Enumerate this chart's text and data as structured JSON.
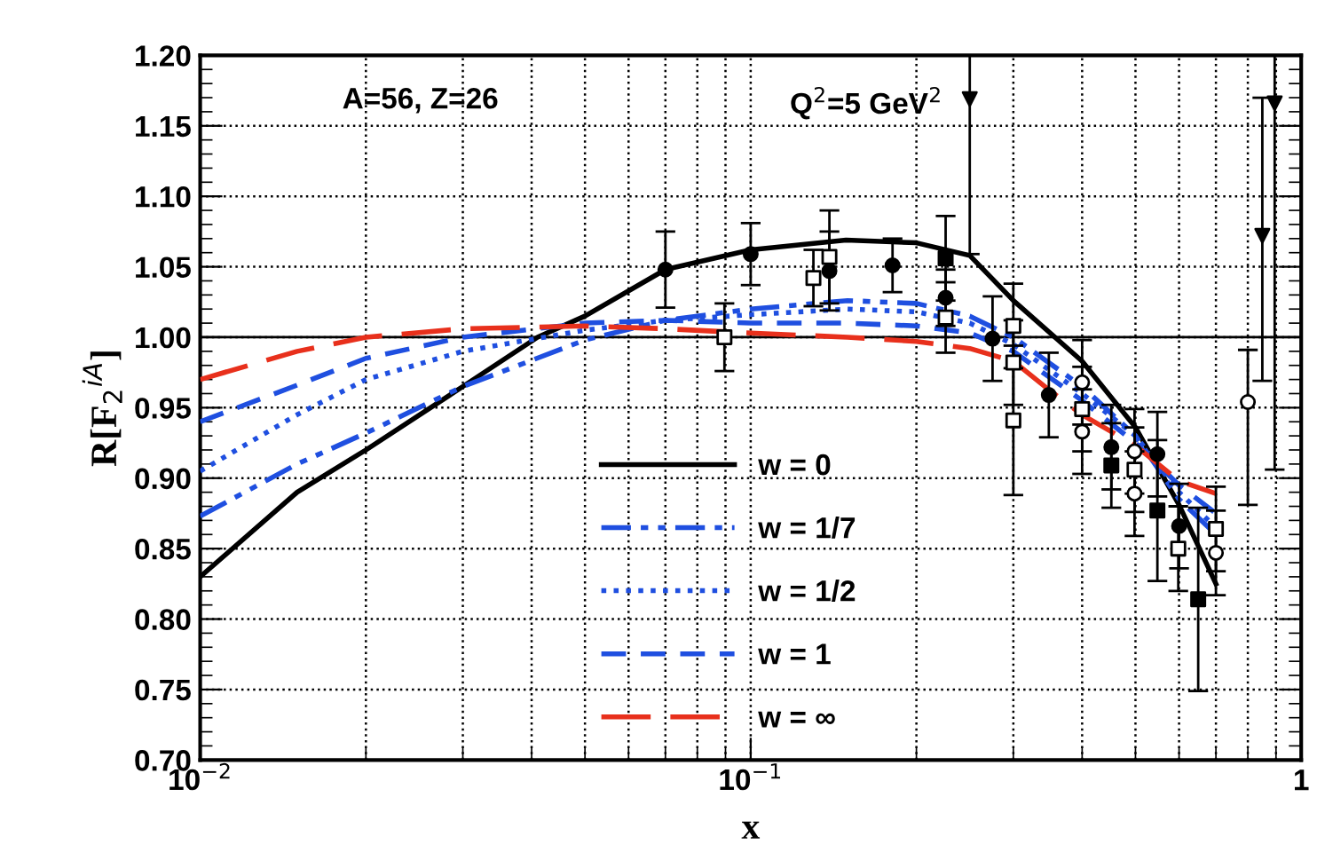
{
  "chart_data": {
    "type": "line",
    "xlabel": "x",
    "ylabel": "R[F$_{2}$$^{iA}$]",
    "annotations": [
      "A=56, Z=26",
      "Q$^{2}$=5 GeV$^{2}$"
    ],
    "log": "x",
    "xlim": [
      0.01,
      1
    ],
    "ylim": [
      0.7,
      1.2
    ],
    "xticks": [
      {
        "value": 0.01,
        "label": "10$^{−2}$"
      },
      {
        "value": 0.1,
        "label": "10$^{−1}$"
      },
      1
    ],
    "yticks": [
      {
        "value": 0.7,
        "label": "0.70"
      },
      0.75,
      {
        "value": 0.8,
        "label": "0.80"
      },
      0.85,
      {
        "value": 0.9,
        "label": "0.90"
      },
      0.95,
      {
        "value": 1.0,
        "label": "1.00"
      },
      1.05,
      {
        "value": 1.1,
        "label": "1.10"
      },
      1.15,
      {
        "value": 1.2,
        "label": "1.20"
      }
    ],
    "grid": true,
    "legend": "bottom",
    "ref_lines": [
      {
        "axis": "y",
        "value": 1.0,
        "color": "#000000",
        "line_style": "solid"
      }
    ],
    "series": [
      {
        "name": "w = 0",
        "color": "#000000",
        "line_style": "solid",
        "x": [
          0.01,
          0.015,
          0.02,
          0.03,
          0.041,
          0.05,
          0.07,
          0.1,
          0.149,
          0.2,
          0.25,
          0.3,
          0.4,
          0.5,
          0.6,
          0.7
        ],
        "values": [
          0.83,
          0.89,
          0.92,
          0.965,
          1.0,
          1.015,
          1.048,
          1.062,
          1.069,
          1.067,
          1.058,
          1.026,
          0.983,
          0.936,
          0.881,
          0.825
        ]
      },
      {
        "name": "w = 1/7",
        "color": "#1f4fe0",
        "line_style": "dashdot",
        "x": [
          0.01,
          0.015,
          0.02,
          0.03,
          0.05,
          0.07,
          0.1,
          0.15,
          0.2,
          0.25,
          0.3,
          0.4,
          0.5,
          0.6,
          0.7
        ],
        "values": [
          0.873,
          0.91,
          0.932,
          0.965,
          0.998,
          1.012,
          1.02,
          1.026,
          1.024,
          1.015,
          1.0,
          0.965,
          0.93,
          0.885,
          0.86
        ]
      },
      {
        "name": "w = 1/2",
        "color": "#1f4fe0",
        "line_style": "dotted",
        "x": [
          0.01,
          0.015,
          0.02,
          0.03,
          0.05,
          0.07,
          0.1,
          0.15,
          0.2,
          0.25,
          0.3,
          0.4,
          0.5,
          0.6,
          0.7
        ],
        "values": [
          0.905,
          0.945,
          0.97,
          0.99,
          1.005,
          1.012,
          1.016,
          1.02,
          1.018,
          1.01,
          0.995,
          0.96,
          0.93,
          0.89,
          0.865
        ]
      },
      {
        "name": "w = 1",
        "color": "#1f4fe0",
        "line_style": "dashed",
        "x": [
          0.01,
          0.015,
          0.02,
          0.03,
          0.05,
          0.07,
          0.1,
          0.15,
          0.2,
          0.25,
          0.3,
          0.4,
          0.5,
          0.6,
          0.7
        ],
        "values": [
          0.94,
          0.966,
          0.985,
          1.0,
          1.01,
          1.012,
          1.01,
          1.01,
          1.008,
          1.003,
          0.99,
          0.955,
          0.925,
          0.895,
          0.875
        ]
      },
      {
        "name": "w = ∞",
        "color": "#e8301c",
        "line_style": "longdash",
        "x": [
          0.01,
          0.015,
          0.02,
          0.03,
          0.05,
          0.07,
          0.1,
          0.15,
          0.2,
          0.25,
          0.3,
          0.35,
          0.4,
          0.5,
          0.6,
          0.7
        ],
        "values": [
          0.97,
          0.99,
          1.0,
          1.006,
          1.008,
          1.006,
          1.003,
          1.0,
          0.997,
          0.992,
          0.983,
          0.962,
          0.945,
          0.923,
          0.898,
          0.889
        ]
      },
      {
        "type": "scatter",
        "marker": "circle",
        "color": "#000000",
        "x": [
          0.07,
          0.1,
          0.139,
          0.181,
          0.226,
          0.275,
          0.348,
          0.452,
          0.548,
          0.6
        ],
        "values": [
          1.048,
          1.059,
          1.047,
          1.051,
          1.028,
          0.999,
          0.959,
          0.922,
          0.917,
          0.866
        ],
        "errors": [
          0.027,
          0.022,
          0.028,
          0.019,
          0.02,
          0.03,
          0.03,
          0.03,
          0.03,
          0.03
        ]
      },
      {
        "type": "scatter",
        "marker": "square-open",
        "color": "#000000",
        "x": [
          0.0896,
          0.13,
          0.139,
          0.226,
          0.3,
          0.3,
          0.3,
          0.4,
          0.498,
          0.598,
          0.7
        ],
        "values": [
          1.0,
          1.042,
          1.057,
          1.014,
          1.008,
          0.982,
          0.941,
          0.949,
          0.906,
          0.85,
          0.864
        ],
        "errors": [
          0.024,
          0.02,
          0.033,
          0.025,
          0.03,
          0.03,
          0.053,
          0.03,
          0.03,
          0.03,
          0.03
        ]
      },
      {
        "type": "scatter",
        "marker": "square",
        "color": "#000000",
        "x": [
          0.226,
          0.452,
          0.548,
          0.65
        ],
        "values": [
          1.056,
          0.909,
          0.877,
          0.814
        ],
        "errors": [
          0.03,
          0.03,
          0.05,
          0.065
        ]
      },
      {
        "type": "scatter",
        "marker": "triangle",
        "color": "#000000",
        "x": [
          0.25,
          0.85,
          0.895
        ],
        "values": [
          1.169,
          1.072,
          1.166
        ],
        "errors": [
          [
            1.059,
            1.2
          ],
          [
            0.969,
            1.17
          ],
          [
            0.906,
            1.2
          ]
        ]
      },
      {
        "type": "scatter",
        "marker": "circle-open",
        "color": "#000000",
        "x": [
          0.4,
          0.4,
          0.498,
          0.498,
          0.7,
          0.8
        ],
        "values": [
          0.968,
          0.933,
          0.919,
          0.889,
          0.847,
          0.954
        ],
        "errors": [
          0.03,
          0.03,
          0.03,
          0.03,
          0.03,
          [
            0.881,
            0.991
          ]
        ]
      }
    ]
  }
}
